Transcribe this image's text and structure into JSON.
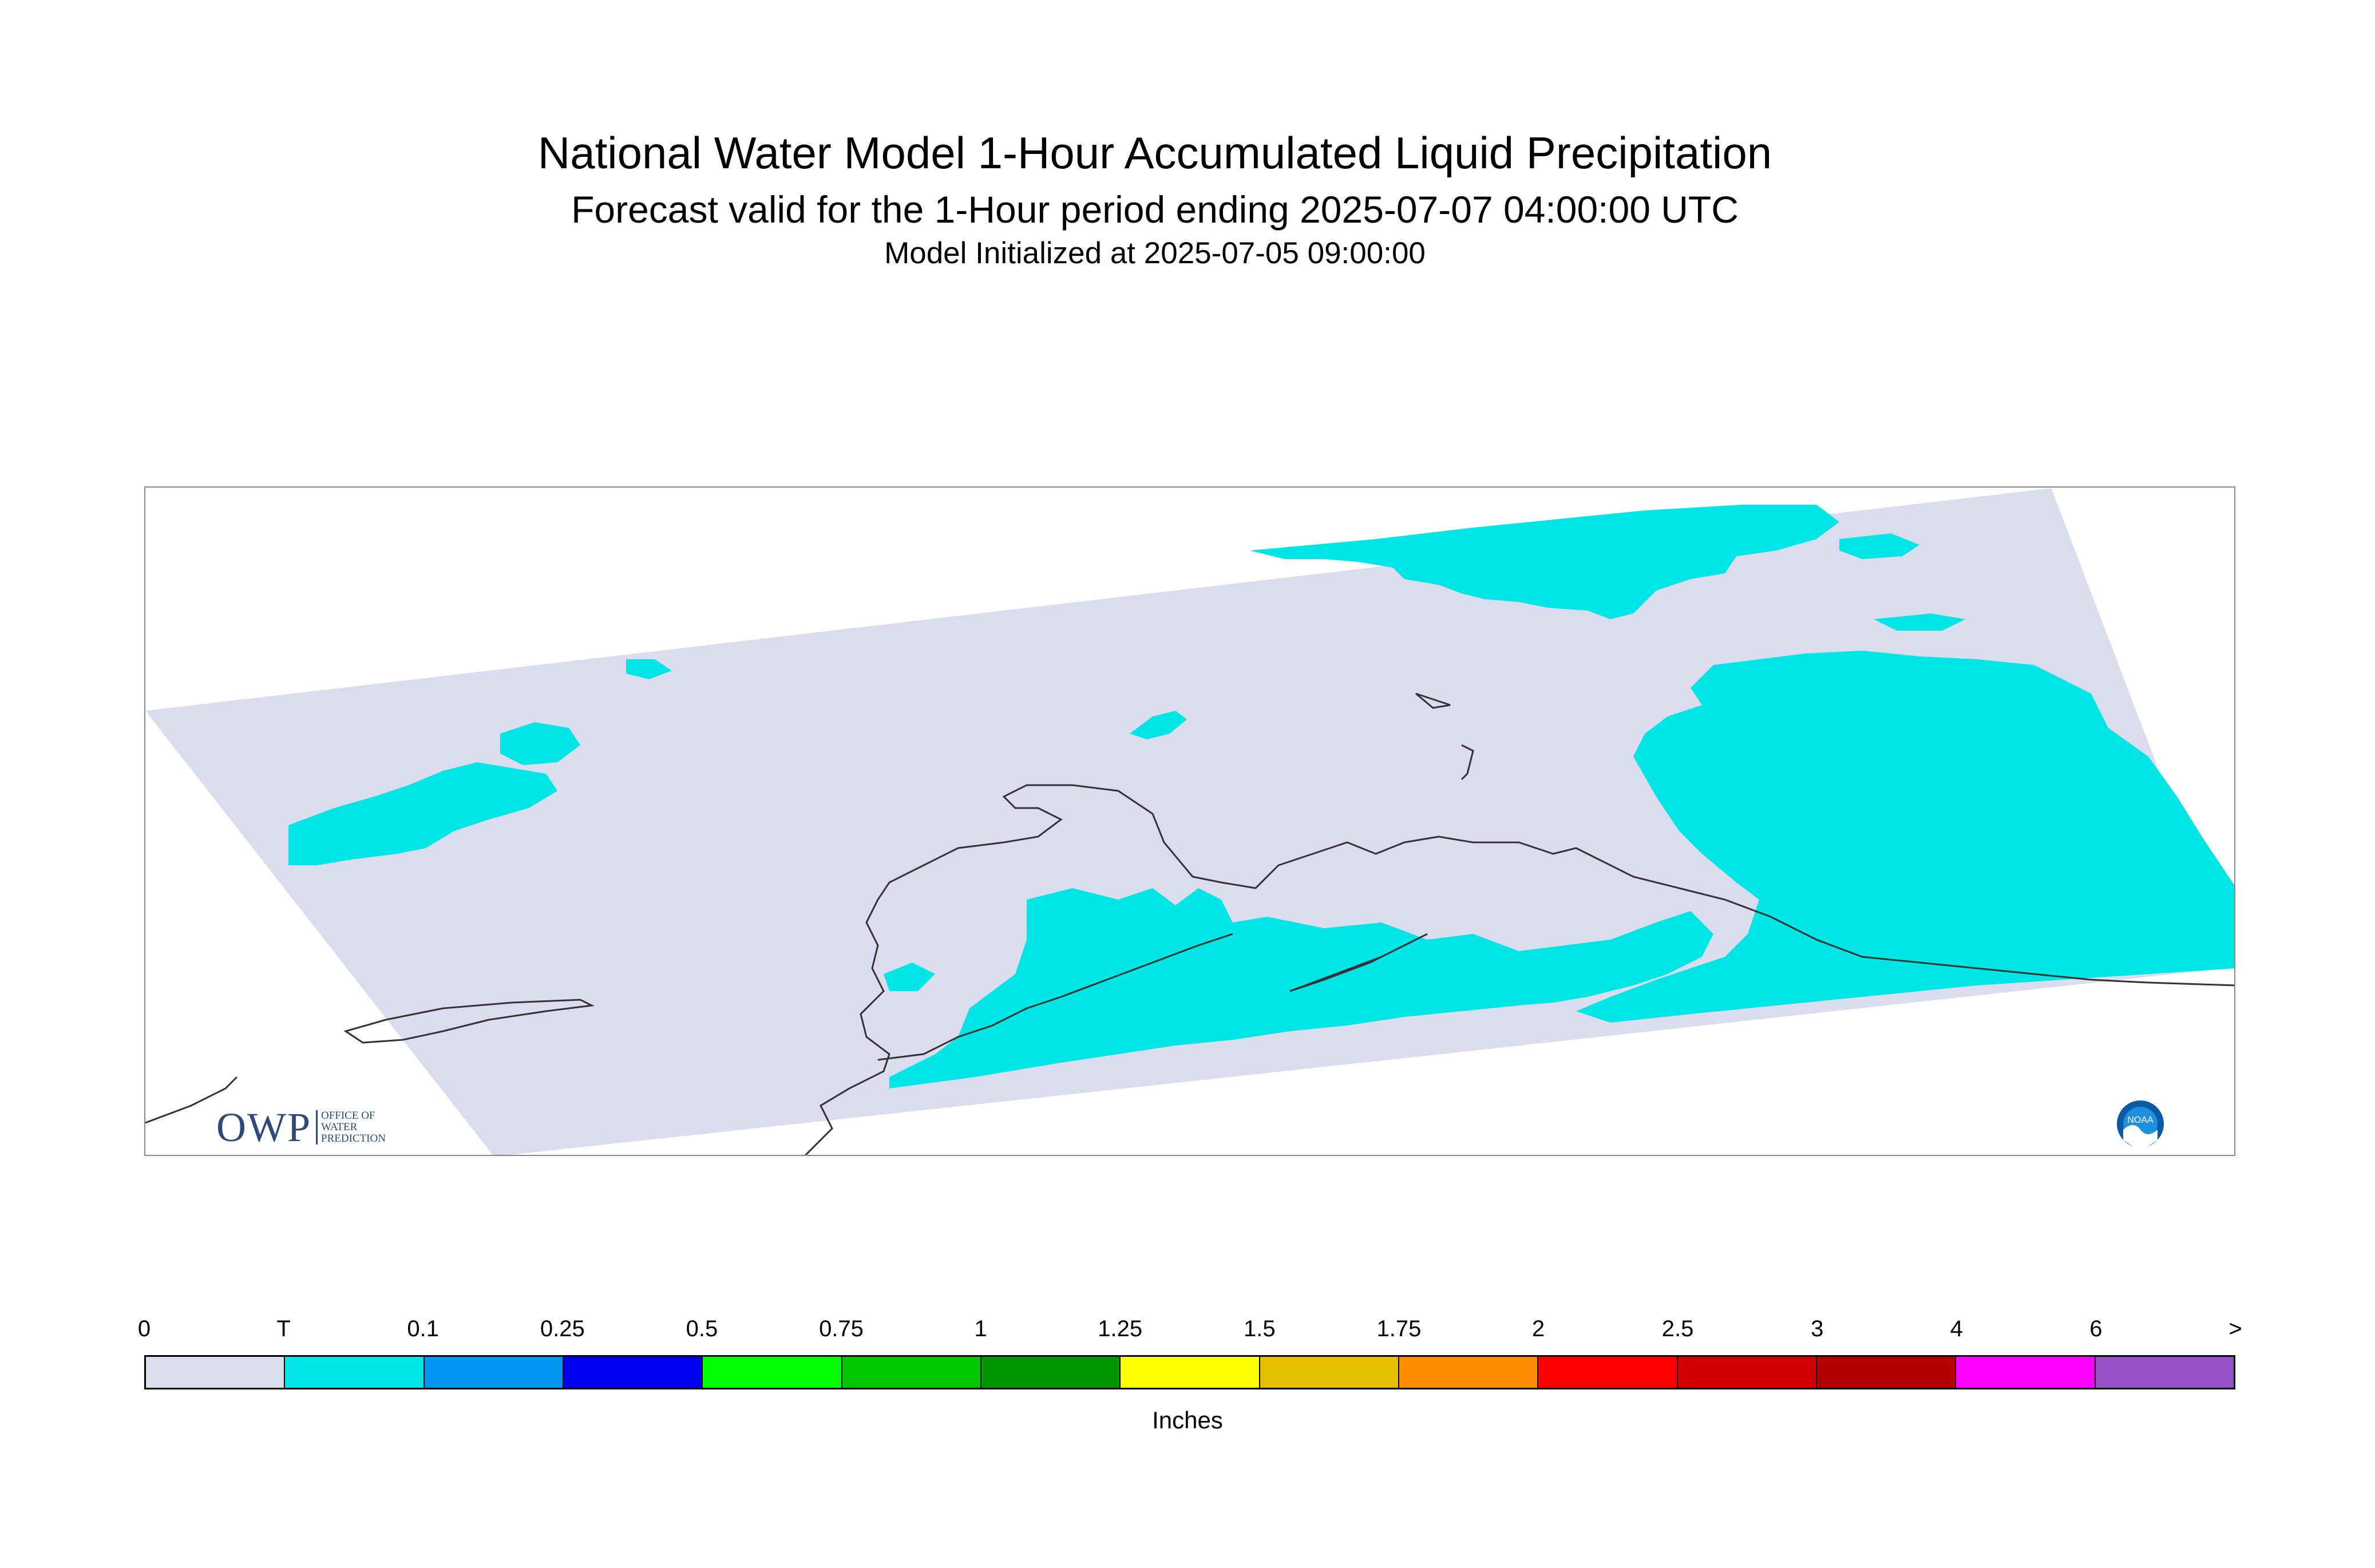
{
  "titles": {
    "main": "National Water Model 1-Hour Accumulated Liquid Precipitation",
    "forecast": "Forecast valid for the 1-Hour period ending 2025-07-07 04:00:00 UTC",
    "init": "Model Initialized at 2025-07-05 09:00:00"
  },
  "map": {
    "region": "Southern Alaska",
    "domain_color": "#dcdcef",
    "precip_color": "#00e5e5",
    "coastline_color": "#333333"
  },
  "logos": {
    "owp_letters": "OWP",
    "owp_sub": [
      "OFFICE OF",
      "WATER",
      "PREDICTION"
    ],
    "noaa_text": "NOAA"
  },
  "legend": {
    "tick_labels": [
      "0",
      "T",
      "0.1",
      "0.25",
      "0.5",
      "0.75",
      "1",
      "1.25",
      "1.5",
      "1.75",
      "2",
      "2.5",
      "3",
      "4",
      "6",
      ">"
    ],
    "colors": [
      "#dcdcef",
      "#00e5e5",
      "#0096f0",
      "#0000f0",
      "#00ff00",
      "#00c800",
      "#009600",
      "#ffff00",
      "#e6be00",
      "#ff8c00",
      "#ff0000",
      "#d20000",
      "#b40000",
      "#ff00ff",
      "#9650c8"
    ],
    "units": "Inches"
  }
}
